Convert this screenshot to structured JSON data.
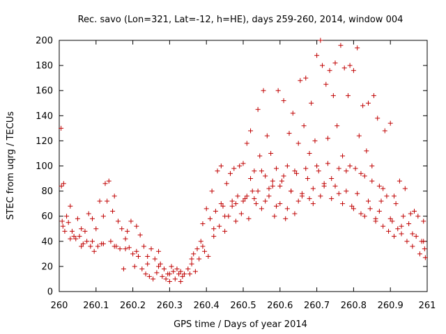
{
  "chart_data": {
    "type": "scatter",
    "title": "Rec. savo (Lon=321, Lat=-12, h=HE), days 259-260, 2014, window 004",
    "xlabel": "GPS time / Days of year 2014",
    "ylabel": "STEC from uqrg / TECUs",
    "xlim": [
      260,
      261
    ],
    "ylim": [
      0,
      200
    ],
    "x_ticks": [
      "260",
      "260.1",
      "260.2",
      "260.3",
      "260.4",
      "260.5",
      "260.6",
      "260.7",
      "260.8",
      "260.9",
      "261"
    ],
    "y_ticks": [
      "0",
      "20",
      "40",
      "60",
      "80",
      "100",
      "120",
      "140",
      "160",
      "180",
      "200"
    ],
    "grid": false,
    "legend": "none",
    "marker": "+",
    "colors": {
      "points": "#c00000",
      "axes": "#000000"
    },
    "series": [
      {
        "points": [
          [
            260.005,
            130
          ],
          [
            260.006,
            84
          ],
          [
            260.012,
            86
          ],
          [
            260.008,
            56
          ],
          [
            260.01,
            52
          ],
          [
            260.015,
            48
          ],
          [
            260.02,
            60
          ],
          [
            260.025,
            55
          ],
          [
            260.03,
            68
          ],
          [
            260.035,
            48
          ],
          [
            260.04,
            44
          ],
          [
            260.045,
            42
          ],
          [
            260.05,
            58
          ],
          [
            260.055,
            44
          ],
          [
            260.06,
            50
          ],
          [
            260.065,
            38
          ],
          [
            260.07,
            48
          ],
          [
            260.075,
            40
          ],
          [
            260.08,
            62
          ],
          [
            260.085,
            36
          ],
          [
            260.09,
            58
          ],
          [
            260.095,
            32
          ],
          [
            260.1,
            50
          ],
          [
            260.105,
            36
          ],
          [
            260.11,
            72
          ],
          [
            260.115,
            38
          ],
          [
            260.12,
            60
          ],
          [
            260.125,
            86
          ],
          [
            260.13,
            72
          ],
          [
            260.135,
            88
          ],
          [
            260.14,
            40
          ],
          [
            260.145,
            64
          ],
          [
            260.15,
            76
          ],
          [
            260.155,
            36
          ],
          [
            260.16,
            56
          ],
          [
            260.165,
            34
          ],
          [
            260.17,
            50
          ],
          [
            260.175,
            18
          ],
          [
            260.18,
            42
          ],
          [
            260.185,
            48
          ],
          [
            260.19,
            35
          ],
          [
            260.195,
            56
          ],
          [
            260.2,
            30
          ],
          [
            260.205,
            20
          ],
          [
            260.21,
            52
          ],
          [
            260.215,
            28
          ],
          [
            260.22,
            45
          ],
          [
            260.225,
            18
          ],
          [
            260.23,
            36
          ],
          [
            260.235,
            14
          ],
          [
            260.24,
            22
          ],
          [
            260.245,
            12
          ],
          [
            260.25,
            34
          ],
          [
            260.255,
            10
          ],
          [
            260.26,
            26
          ],
          [
            260.265,
            15
          ],
          [
            260.27,
            32
          ],
          [
            260.275,
            22
          ],
          [
            260.28,
            12
          ],
          [
            260.285,
            18
          ],
          [
            260.29,
            10
          ],
          [
            260.295,
            14
          ],
          [
            260.3,
            8
          ],
          [
            260.305,
            20
          ],
          [
            260.31,
            16
          ],
          [
            260.315,
            10
          ],
          [
            260.32,
            18
          ],
          [
            260.325,
            14
          ],
          [
            260.33,
            8
          ],
          [
            260.335,
            12
          ],
          [
            260.34,
            14
          ],
          [
            260.35,
            18
          ],
          [
            260.355,
            14
          ],
          [
            260.36,
            22
          ],
          [
            260.365,
            30
          ],
          [
            260.37,
            16
          ],
          [
            260.375,
            34
          ],
          [
            260.38,
            26
          ],
          [
            260.385,
            40
          ],
          [
            260.39,
            54
          ],
          [
            260.395,
            32
          ],
          [
            260.4,
            66
          ],
          [
            260.405,
            28
          ],
          [
            260.41,
            58
          ],
          [
            260.415,
            80
          ],
          [
            260.42,
            44
          ],
          [
            260.425,
            64
          ],
          [
            260.43,
            96
          ],
          [
            260.435,
            52
          ],
          [
            260.44,
            100
          ],
          [
            260.445,
            68
          ],
          [
            260.45,
            48
          ],
          [
            260.455,
            86
          ],
          [
            260.46,
            60
          ],
          [
            260.465,
            94
          ],
          [
            260.47,
            72
          ],
          [
            260.475,
            98
          ],
          [
            260.48,
            56
          ],
          [
            260.485,
            76
          ],
          [
            260.49,
            100
          ],
          [
            260.495,
            62
          ],
          [
            260.5,
            102
          ],
          [
            260.505,
            74
          ],
          [
            260.51,
            118
          ],
          [
            260.515,
            58
          ],
          [
            260.52,
            128
          ],
          [
            260.525,
            80
          ],
          [
            260.53,
            96
          ],
          [
            260.535,
            70
          ],
          [
            260.54,
            145
          ],
          [
            260.545,
            108
          ],
          [
            260.55,
            66
          ],
          [
            260.555,
            160
          ],
          [
            260.56,
            92
          ],
          [
            260.565,
            124
          ],
          [
            260.57,
            76
          ],
          [
            260.575,
            110
          ],
          [
            260.58,
            84
          ],
          [
            260.585,
            60
          ],
          [
            260.59,
            98
          ],
          [
            260.595,
            160
          ],
          [
            260.6,
            70
          ],
          [
            260.605,
            88
          ],
          [
            260.61,
            152
          ],
          [
            260.615,
            58
          ],
          [
            260.62,
            100
          ],
          [
            260.625,
            126
          ],
          [
            260.63,
            80
          ],
          [
            260.635,
            142
          ],
          [
            260.64,
            62
          ],
          [
            260.645,
            94
          ],
          [
            260.65,
            118
          ],
          [
            260.655,
            168
          ],
          [
            260.66,
            78
          ],
          [
            260.665,
            132
          ],
          [
            260.67,
            170
          ],
          [
            260.675,
            90
          ],
          [
            260.68,
            110
          ],
          [
            260.685,
            150
          ],
          [
            260.69,
            70
          ],
          [
            260.695,
            120
          ],
          [
            260.7,
            188
          ],
          [
            260.705,
            96
          ],
          [
            260.71,
            200
          ],
          [
            260.715,
            180
          ],
          [
            260.72,
            84
          ],
          [
            260.725,
            165
          ],
          [
            260.73,
            122
          ],
          [
            260.735,
            176
          ],
          [
            260.74,
            90
          ],
          [
            260.745,
            156
          ],
          [
            260.75,
            182
          ],
          [
            260.755,
            132
          ],
          [
            260.76,
            78
          ],
          [
            260.765,
            196
          ],
          [
            260.77,
            108
          ],
          [
            260.775,
            178
          ],
          [
            260.78,
            96
          ],
          [
            260.785,
            156
          ],
          [
            260.79,
            180
          ],
          [
            260.795,
            68
          ],
          [
            260.8,
            176
          ],
          [
            260.805,
            98
          ],
          [
            260.81,
            194
          ],
          [
            260.815,
            124
          ],
          [
            260.82,
            62
          ],
          [
            260.825,
            148
          ],
          [
            260.83,
            92
          ],
          [
            260.835,
            112
          ],
          [
            260.84,
            150
          ],
          [
            260.845,
            66
          ],
          [
            260.85,
            100
          ],
          [
            260.855,
            156
          ],
          [
            260.86,
            58
          ],
          [
            260.865,
            138
          ],
          [
            260.87,
            84
          ],
          [
            260.875,
            72
          ],
          [
            260.88,
            52
          ],
          [
            260.885,
            128
          ],
          [
            260.89,
            76
          ],
          [
            260.895,
            48
          ],
          [
            260.9,
            134
          ],
          [
            260.905,
            56
          ],
          [
            260.91,
            44
          ],
          [
            260.915,
            70
          ],
          [
            260.92,
            50
          ],
          [
            260.925,
            88
          ],
          [
            260.93,
            46
          ],
          [
            260.935,
            60
          ],
          [
            260.94,
            82
          ],
          [
            260.945,
            40
          ],
          [
            260.95,
            54
          ],
          [
            260.955,
            62
          ],
          [
            260.96,
            36
          ],
          [
            260.965,
            64
          ],
          [
            260.97,
            44
          ],
          [
            260.975,
            60
          ],
          [
            260.98,
            30
          ],
          [
            260.985,
            40
          ],
          [
            260.99,
            56
          ],
          [
            260.993,
            34
          ],
          [
            260.995,
            27
          ],
          [
            260.03,
            42
          ],
          [
            260.06,
            36
          ],
          [
            260.09,
            40
          ],
          [
            260.12,
            38
          ],
          [
            260.15,
            36
          ],
          [
            260.18,
            34
          ],
          [
            260.21,
            32
          ],
          [
            260.24,
            28
          ],
          [
            260.27,
            20
          ],
          [
            260.3,
            14
          ],
          [
            260.33,
            16
          ],
          [
            260.36,
            26
          ],
          [
            260.39,
            36
          ],
          [
            260.42,
            50
          ],
          [
            260.45,
            60
          ],
          [
            260.48,
            70
          ],
          [
            260.51,
            76
          ],
          [
            260.54,
            80
          ],
          [
            260.57,
            82
          ],
          [
            260.6,
            84
          ],
          [
            260.63,
            80
          ],
          [
            260.66,
            76
          ],
          [
            260.69,
            82
          ],
          [
            260.72,
            86
          ],
          [
            260.75,
            84
          ],
          [
            260.78,
            80
          ],
          [
            260.81,
            78
          ],
          [
            260.84,
            72
          ],
          [
            260.87,
            64
          ],
          [
            260.9,
            58
          ],
          [
            260.93,
            52
          ],
          [
            260.96,
            46
          ],
          [
            260.99,
            40
          ],
          [
            260.44,
            70
          ],
          [
            260.47,
            68
          ],
          [
            260.5,
            72
          ],
          [
            260.53,
            74
          ],
          [
            260.56,
            72
          ],
          [
            260.59,
            68
          ],
          [
            260.62,
            66
          ],
          [
            260.65,
            72
          ],
          [
            260.68,
            74
          ],
          [
            260.71,
            76
          ],
          [
            260.74,
            74
          ],
          [
            260.77,
            70
          ],
          [
            260.8,
            66
          ],
          [
            260.83,
            60
          ],
          [
            260.86,
            56
          ],
          [
            260.52,
            90
          ],
          [
            260.55,
            96
          ],
          [
            260.58,
            88
          ],
          [
            260.61,
            92
          ],
          [
            260.64,
            96
          ],
          [
            260.67,
            98
          ],
          [
            260.7,
            100
          ],
          [
            260.73,
            102
          ],
          [
            260.76,
            98
          ],
          [
            260.79,
            100
          ],
          [
            260.82,
            94
          ],
          [
            260.85,
            88
          ],
          [
            260.88,
            82
          ],
          [
            260.91,
            76
          ]
        ]
      }
    ]
  }
}
